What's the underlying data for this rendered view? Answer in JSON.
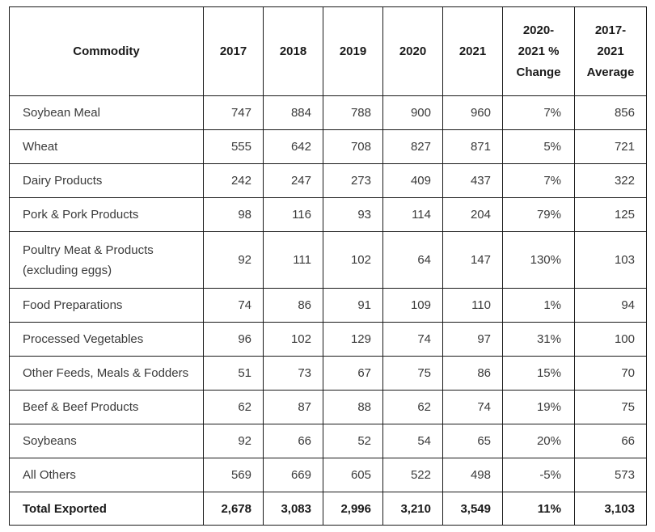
{
  "table": {
    "headers": [
      "Commodity",
      "2017",
      "2018",
      "2019",
      "2020",
      "2021",
      "2020-\n2021 %\nChange",
      "2017-\n2021\nAverage"
    ],
    "headers_lines": [
      [
        "Commodity"
      ],
      [
        "2017"
      ],
      [
        "2018"
      ],
      [
        "2019"
      ],
      [
        "2020"
      ],
      [
        "2021"
      ],
      [
        "2020-",
        "2021 %",
        "Change"
      ],
      [
        "2017-",
        "2021",
        "Average"
      ]
    ],
    "rows": [
      {
        "commodity": "Soybean Meal",
        "v2017": "747",
        "v2018": "884",
        "v2019": "788",
        "v2020": "900",
        "v2021": "960",
        "change": "7%",
        "average": "856"
      },
      {
        "commodity": "Wheat",
        "v2017": "555",
        "v2018": "642",
        "v2019": "708",
        "v2020": "827",
        "v2021": "871",
        "change": "5%",
        "average": "721"
      },
      {
        "commodity": "Dairy Products",
        "v2017": "242",
        "v2018": "247",
        "v2019": "273",
        "v2020": "409",
        "v2021": "437",
        "change": "7%",
        "average": "322"
      },
      {
        "commodity": "Pork & Pork Products",
        "v2017": "98",
        "v2018": "116",
        "v2019": "93",
        "v2020": "114",
        "v2021": "204",
        "change": "79%",
        "average": "125"
      },
      {
        "commodity": "Poultry Meat & Products",
        "commodity_line2": "(excluding eggs)",
        "v2017": "92",
        "v2018": "111",
        "v2019": "102",
        "v2020": "64",
        "v2021": "147",
        "change": "130%",
        "average": "103"
      },
      {
        "commodity": "Food Preparations",
        "v2017": "74",
        "v2018": "86",
        "v2019": "91",
        "v2020": "109",
        "v2021": "110",
        "change": "1%",
        "average": "94"
      },
      {
        "commodity": "Processed Vegetables",
        "v2017": "96",
        "v2018": "102",
        "v2019": "129",
        "v2020": "74",
        "v2021": "97",
        "change": "31%",
        "average": "100"
      },
      {
        "commodity": "Other Feeds, Meals & Fodders",
        "v2017": "51",
        "v2018": "73",
        "v2019": "67",
        "v2020": "75",
        "v2021": "86",
        "change": "15%",
        "average": "70"
      },
      {
        "commodity": "Beef & Beef Products",
        "v2017": "62",
        "v2018": "87",
        "v2019": "88",
        "v2020": "62",
        "v2021": "74",
        "change": "19%",
        "average": "75"
      },
      {
        "commodity": "Soybeans",
        "v2017": "92",
        "v2018": "66",
        "v2019": "52",
        "v2020": "54",
        "v2021": "65",
        "change": "20%",
        "average": "66"
      },
      {
        "commodity": "All Others",
        "v2017": "569",
        "v2018": "669",
        "v2019": "605",
        "v2020": "522",
        "v2021": "498",
        "change": "-5%",
        "average": "573"
      }
    ],
    "total": {
      "commodity": "Total Exported",
      "v2017": "2,678",
      "v2018": "3,083",
      "v2019": "2,996",
      "v2020": "3,210",
      "v2021": "3,549",
      "change": "11%",
      "average": "3,103"
    }
  }
}
